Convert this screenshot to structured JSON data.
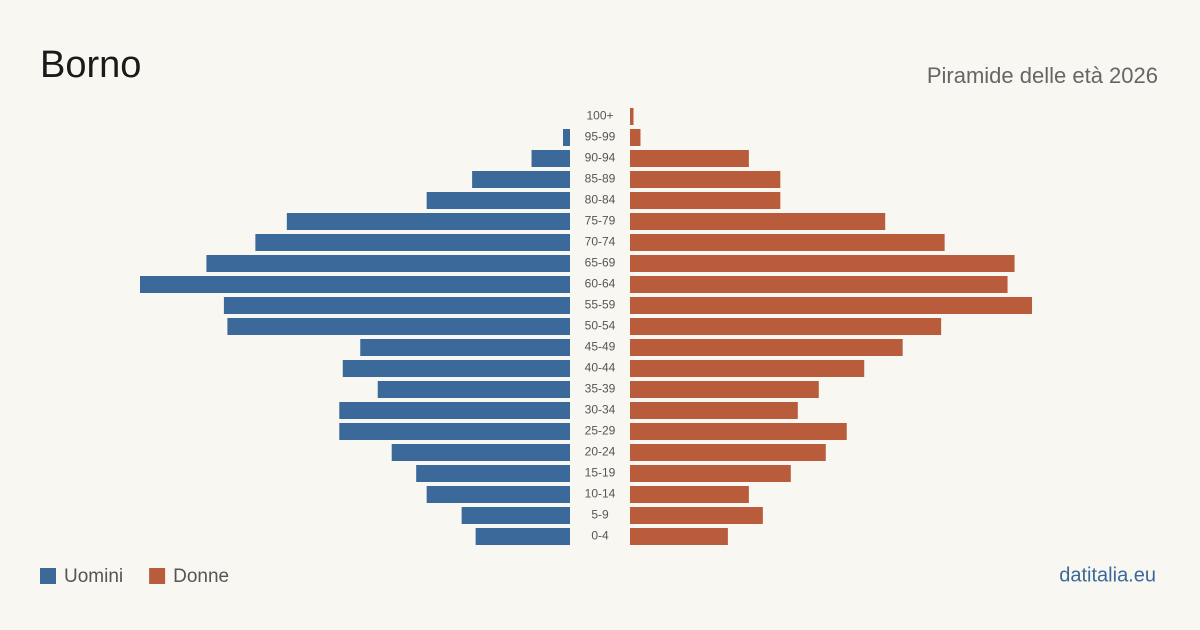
{
  "chart_data": {
    "type": "pyramid",
    "title": "Borno",
    "subtitle": "Piramide delle età 2026",
    "source": "datitalia.eu",
    "categories": [
      "100+",
      "95-99",
      "90-94",
      "85-89",
      "80-84",
      "75-79",
      "70-74",
      "65-69",
      "60-64",
      "55-59",
      "50-54",
      "45-49",
      "40-44",
      "35-39",
      "30-34",
      "25-29",
      "20-24",
      "15-19",
      "10-14",
      "5-9",
      "0-4"
    ],
    "series": [
      {
        "name": "Uomini",
        "color": "#3b6a9a",
        "values": [
          0,
          2,
          11,
          28,
          41,
          81,
          90,
          104,
          123,
          99,
          98,
          60,
          65,
          55,
          66,
          66,
          51,
          44,
          41,
          31,
          27
        ]
      },
      {
        "name": "Donne",
        "color": "#b95c3c",
        "values": [
          1,
          3,
          34,
          43,
          43,
          73,
          90,
          110,
          108,
          115,
          89,
          78,
          67,
          54,
          48,
          62,
          56,
          46,
          34,
          38,
          28
        ]
      }
    ]
  }
}
